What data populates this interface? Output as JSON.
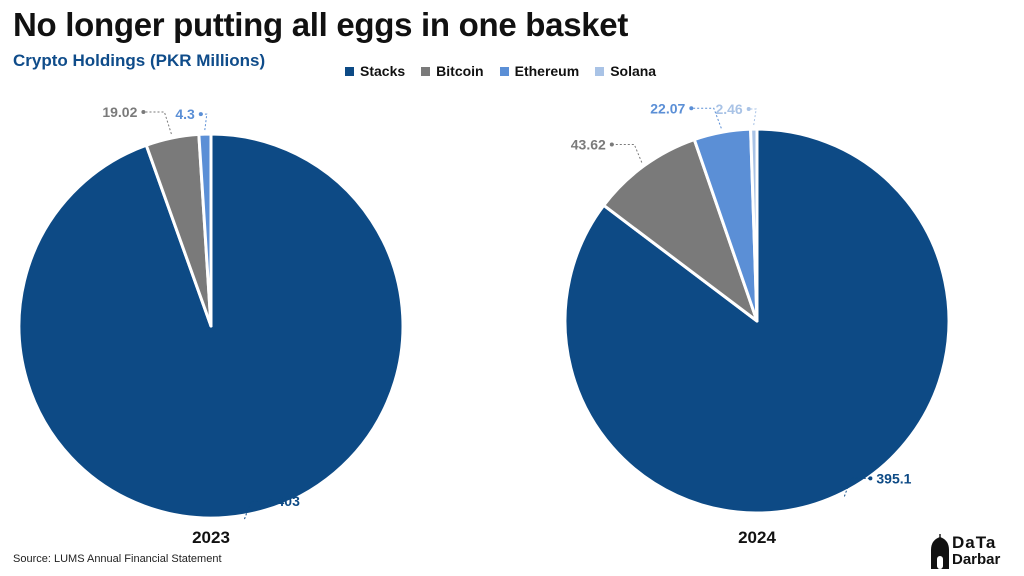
{
  "header": {
    "title": "No longer putting all eggs in one basket",
    "subtitle": "Crypto Holdings (PKR Millions)"
  },
  "footer": {
    "source": "Source: LUMS Annual Financial Statement"
  },
  "logo": {
    "top_text": "DaTa",
    "bottom_text": "Darbar"
  },
  "colors": {
    "Stacks": "#0d4a85",
    "Bitcoin": "#7a7a7a",
    "Ethereum": "#5b8fd6",
    "Solana": "#a9c3e6",
    "subtitle": "#0f4c8a",
    "divider": "#ffffff"
  },
  "chart_data": {
    "type": "pie",
    "legend": {
      "placement": "top",
      "entries": [
        "Stacks",
        "Bitcoin",
        "Ethereum",
        "Solana"
      ]
    },
    "charts": [
      {
        "label": "2023",
        "slices": [
          {
            "name": "Stacks",
            "value": 403,
            "label": "403"
          },
          {
            "name": "Bitcoin",
            "value": 19.02,
            "label": "19.02"
          },
          {
            "name": "Ethereum",
            "value": 4.3,
            "label": "4.3"
          }
        ]
      },
      {
        "label": "2024",
        "slices": [
          {
            "name": "Stacks",
            "value": 395.1,
            "label": "395.1"
          },
          {
            "name": "Bitcoin",
            "value": 43.62,
            "label": "43.62"
          },
          {
            "name": "Ethereum",
            "value": 22.07,
            "label": "22.07"
          },
          {
            "name": "Solana",
            "value": 2.46,
            "label": "2.46"
          }
        ]
      }
    ]
  }
}
